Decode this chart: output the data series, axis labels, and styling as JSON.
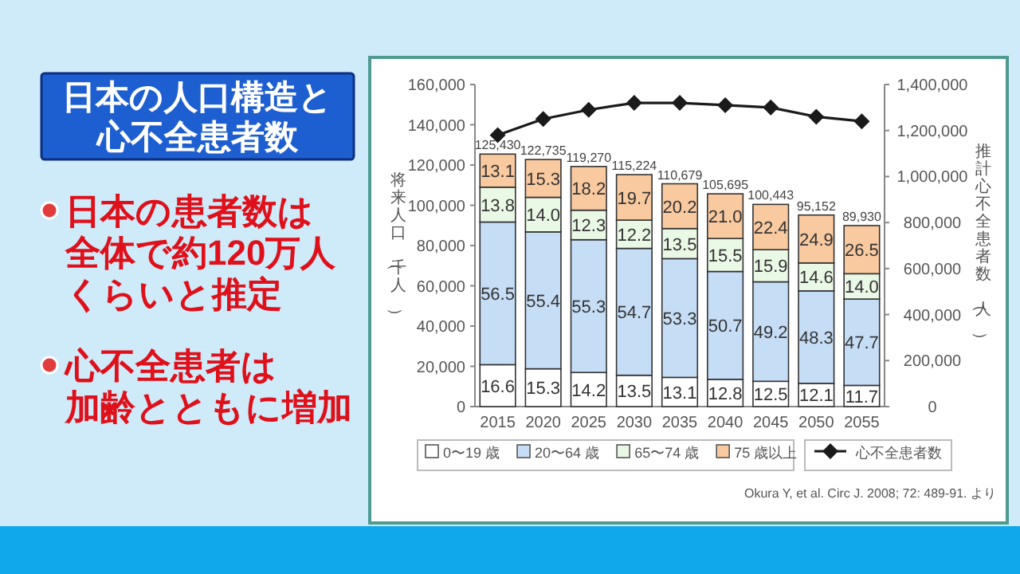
{
  "chart_data": {
    "type": "bar",
    "title": "日本の人口構造と心不全患者数",
    "categories": [
      "2015",
      "2020",
      "2025",
      "2030",
      "2035",
      "2040",
      "2045",
      "2050",
      "2055"
    ],
    "stacked": true,
    "series": [
      {
        "name": "0〜19 歳",
        "color": "#ffffff",
        "values": [
          20821,
          18778,
          16936,
          15555,
          14499,
          13529,
          12555,
          11513,
          10522
        ]
      },
      {
        "name": "20〜64 歳",
        "color": "#c6ddf6",
        "values": [
          70868,
          67995,
          65956,
          63028,
          58992,
          53587,
          49418,
          45958,
          42897
        ]
      },
      {
        "name": "65〜74 歳",
        "color": "#eaf8e6",
        "values": [
          17309,
          17183,
          14670,
          14057,
          14942,
          16383,
          15970,
          13892,
          12590
        ]
      },
      {
        "name": "75 歳以上",
        "color": "#f9c9a0",
        "values": [
          16432,
          18779,
          21708,
          22584,
          22246,
          22196,
          22500,
          23789,
          23921
        ]
      },
      {
        "name": "心不全患者数",
        "type": "line",
        "axis": "y2",
        "color": "#1a1a1a",
        "marker": "diamond",
        "values": [
          1180000,
          1250000,
          1290000,
          1320000,
          1320000,
          1310000,
          1300000,
          1260000,
          1240000
        ]
      }
    ],
    "totals": [
      "125,430",
      "122,735",
      "119,270",
      "115,224",
      "110,679",
      "105,695",
      "100,443",
      "95,152",
      "89,930"
    ],
    "ylim": [
      0,
      160000
    ],
    "yticks": [
      0,
      {
        "value": 20000,
        "label": "20,000"
      },
      {
        "value": 40000,
        "label": "40,000"
      },
      {
        "value": 60000,
        "label": "60,000"
      },
      {
        "value": 80000,
        "label": "80,000"
      },
      {
        "value": 100000,
        "label": "100,000"
      },
      {
        "value": 120000,
        "label": "120,000"
      },
      {
        "value": 140000,
        "label": "140,000"
      },
      {
        "value": 160000,
        "label": "160,000"
      }
    ],
    "y2lim": [
      0,
      1400000
    ],
    "y2ticks": [
      0,
      {
        "value": 200000,
        "label": "200,000"
      },
      {
        "value": 400000,
        "label": "400,000"
      },
      {
        "value": 600000,
        "label": "600,000"
      },
      {
        "value": 800000,
        "label": "800,000"
      },
      {
        "value": 1000000,
        "label": "1,000,000"
      },
      {
        "value": 1200000,
        "label": "1,200,000"
      },
      {
        "value": 1400000,
        "label": "1,400,000"
      }
    ],
    "ylabel": "将来人口（千人）",
    "y2label": "推計心不全患者数（人）",
    "legend": "bottom",
    "annotations": [
      "日本の患者数は",
      "全体で約120万人",
      "くらいと推定",
      "心不全患者は",
      "加齢とともに増加",
      "Okura Y, et al. Circ J. 2008; 72: 489-91. より",
      "16.6",
      "56.5",
      "13.8",
      "13.1",
      "15.3",
      "55.4",
      "14.0",
      "15.3",
      "14.2",
      "55.3",
      "12.3",
      "18.2",
      "13.5",
      "54.7",
      "12.2",
      "19.7",
      "13.1",
      "53.3",
      "13.5",
      "20.2",
      "12.8",
      "50.7",
      "15.5",
      "21.0",
      "12.5",
      "49.2",
      "15.9",
      "22.4",
      "12.1",
      "48.3",
      "14.6",
      "24.9",
      "11.7",
      "47.7",
      "14.0",
      "26.5"
    ]
  }
}
